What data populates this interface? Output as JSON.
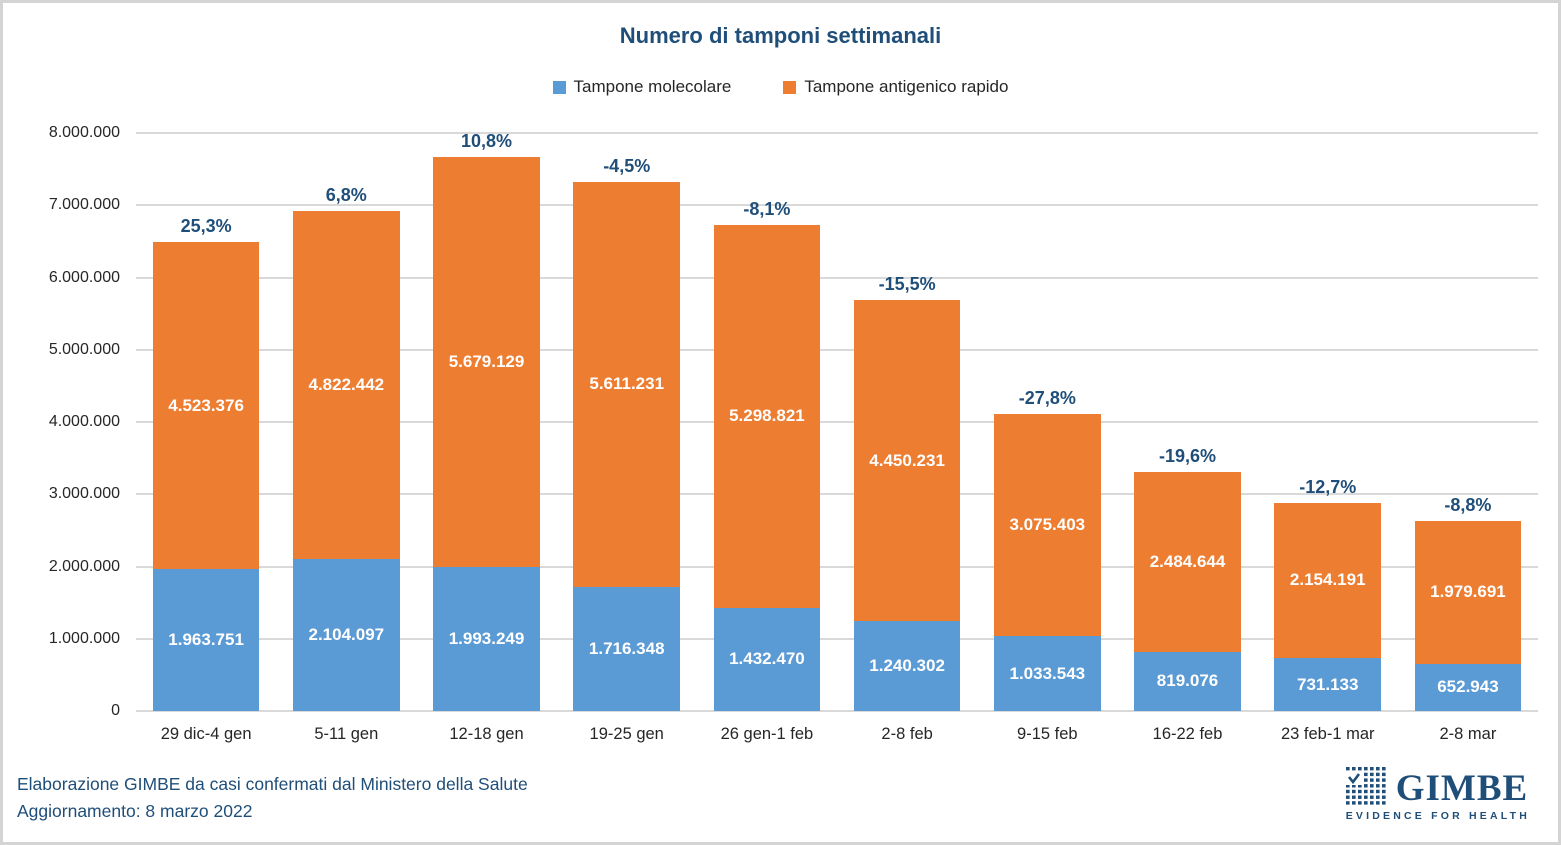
{
  "chart_data": {
    "type": "bar",
    "stacked": true,
    "title": "Numero di tamponi settimanali",
    "categories": [
      "29 dic-4 gen",
      "5-11 gen",
      "12-18 gen",
      "19-25 gen",
      "26 gen-1 feb",
      "2-8 feb",
      "9-15 feb",
      "16-22 feb",
      "23 feb-1 mar",
      "2-8 mar"
    ],
    "series": [
      {
        "name": "Tampone molecolare",
        "color": "#5B9BD5",
        "values": [
          1963751,
          2104097,
          1993249,
          1716348,
          1432470,
          1240302,
          1033543,
          819076,
          731133,
          652943
        ]
      },
      {
        "name": "Tampone antigenico rapido",
        "color": "#ED7D31",
        "values": [
          4523376,
          4822442,
          5679129,
          5611231,
          5298821,
          4450231,
          3075403,
          2484644,
          2154191,
          1979691
        ]
      }
    ],
    "bar_total_pct_labels": [
      "25,3%",
      "6,8%",
      "10,8%",
      "-4,5%",
      "-8,1%",
      "-15,5%",
      "-27,8%",
      "-19,6%",
      "-12,7%",
      "-8,8%"
    ],
    "ylim": [
      0,
      8000000
    ],
    "ytick_step": 1000000,
    "ytick_labels": [
      "0",
      "1.000.000",
      "2.000.000",
      "3.000.000",
      "4.000.000",
      "5.000.000",
      "6.000.000",
      "7.000.000",
      "8.000.000"
    ],
    "grid": true,
    "legend_position": "top",
    "value_label_style": "white bold centered inside segments, thousands separated by dots"
  },
  "footer": {
    "line1": "Elaborazione GIMBE da casi confermati dal Ministero della Salute",
    "line2": "Aggiornamento: 8 marzo 2022"
  },
  "logo": {
    "wordmark": "GIMBE",
    "tagline": "EVIDENCE FOR HEALTH"
  },
  "colors": {
    "title_text": "#1F4E79",
    "pct_label_text": "#1F4E79",
    "footer_text": "#1F4E79",
    "logo": "#1F4E79",
    "series_blue": "#5B9BD5",
    "series_orange": "#ED7D31",
    "gridlines": "#D9D9D9",
    "axis_text": "#262626",
    "frame_border": "#D4D4D4"
  }
}
